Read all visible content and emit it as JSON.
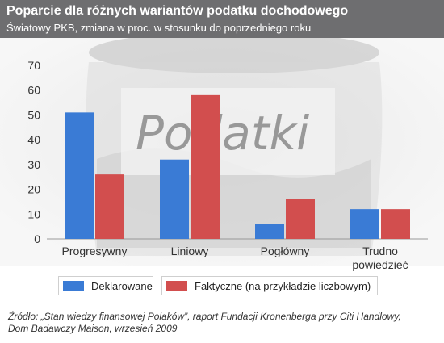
{
  "header": {
    "title": "Poparcie dla różnych wariantów podatku dochodowego",
    "subtitle": "Światowy PKB, zmiana w proc. w stosunku do poprzedniego roku"
  },
  "background": {
    "jar_label": "Podatki"
  },
  "chart_data": {
    "type": "bar",
    "title": "Poparcie dla różnych wariantów podatku dochodowego",
    "subtitle": "Światowy PKB, zmiana w proc. w stosunku do poprzedniego roku",
    "categories": [
      "Progresywny",
      "Liniowy",
      "Pogłówny",
      "Trudno powiedzieć"
    ],
    "category_lines": [
      [
        "Progresywny"
      ],
      [
        "Liniowy"
      ],
      [
        "Pogłówny"
      ],
      [
        "Trudno",
        "powiedzieć"
      ]
    ],
    "series": [
      {
        "name": "Deklarowane",
        "values": [
          51,
          32,
          6,
          12
        ],
        "color": "#3a7bd5"
      },
      {
        "name": "Faktyczne (na przykładzie liczbowym)",
        "values": [
          26,
          58,
          16,
          12
        ],
        "color": "#d24e4e"
      }
    ],
    "y_ticks": [
      "0",
      "10",
      "20",
      "30",
      "40",
      "50",
      "60",
      "70"
    ],
    "ylim": [
      0,
      70
    ],
    "grid": false,
    "legend_position": "bottom"
  },
  "footer": {
    "source_line1": "Źródło: „Stan wiedzy finansowej Polaków”, raport Fundacji Kronenberga przy Citi Handlowy,",
    "source_line2": "Dom Badawczy Maison, wrzesień 2009"
  }
}
